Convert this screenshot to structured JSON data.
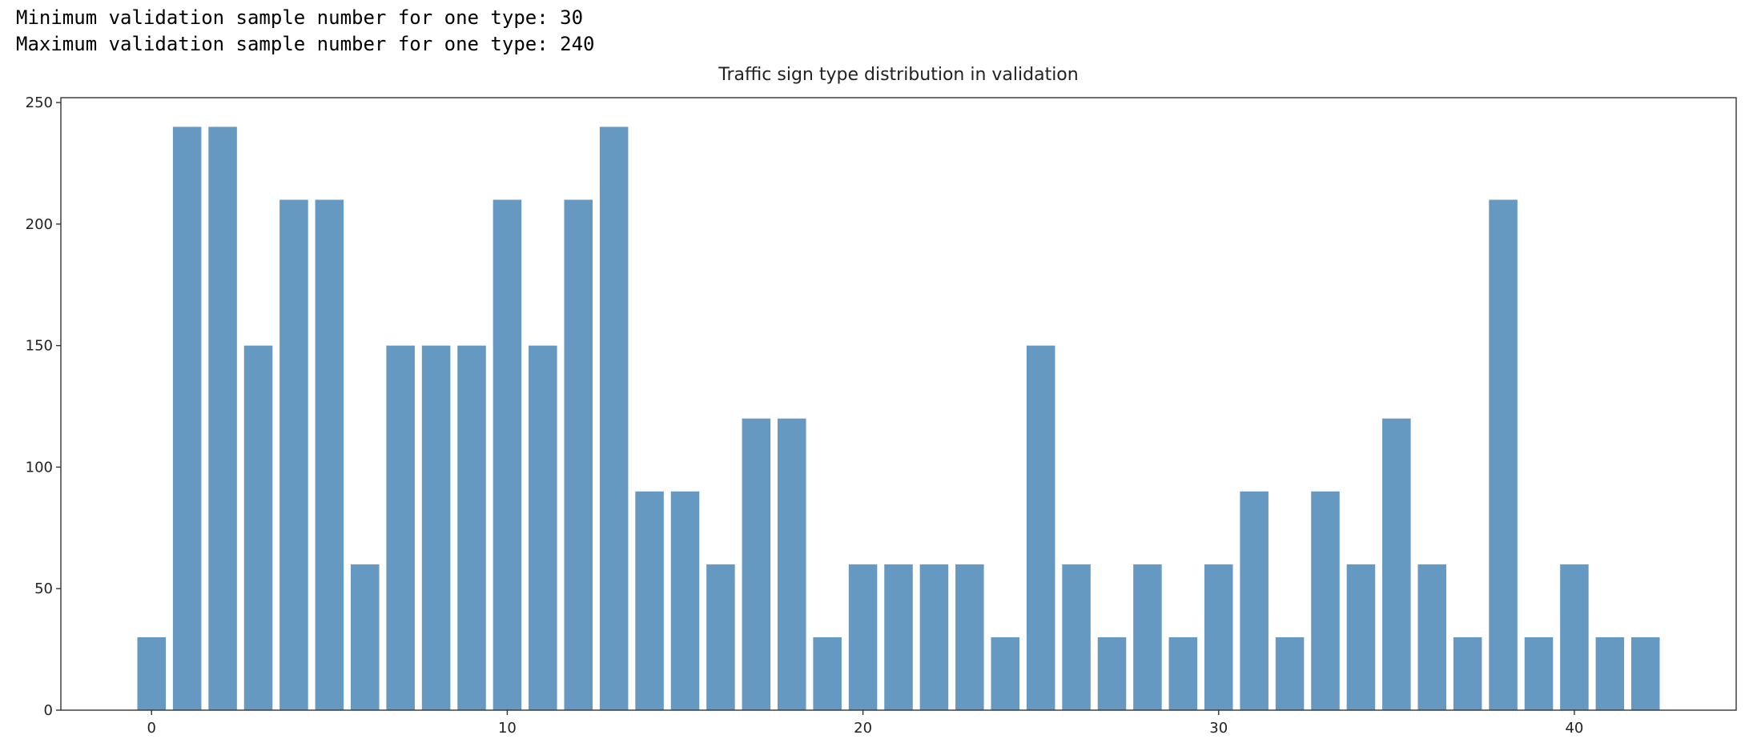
{
  "output": [
    "Minimum validation sample number for one type: 30",
    "Maximum validation sample number for one type: 240"
  ],
  "chart_data": {
    "type": "bar",
    "title": "Traffic sign type distribution in validation",
    "color": "#6699c2",
    "x": [
      0,
      1,
      2,
      3,
      4,
      5,
      6,
      7,
      8,
      9,
      10,
      11,
      12,
      13,
      14,
      15,
      16,
      17,
      18,
      19,
      20,
      21,
      22,
      23,
      24,
      25,
      26,
      27,
      28,
      29,
      30,
      31,
      32,
      33,
      34,
      35,
      36,
      37,
      38,
      39,
      40,
      41,
      42
    ],
    "values": [
      30,
      240,
      240,
      150,
      210,
      210,
      60,
      150,
      150,
      150,
      210,
      150,
      210,
      240,
      90,
      90,
      60,
      120,
      120,
      30,
      60,
      60,
      60,
      60,
      30,
      150,
      60,
      30,
      60,
      30,
      60,
      90,
      30,
      90,
      60,
      120,
      60,
      30,
      210,
      30,
      60,
      30,
      30
    ],
    "xlim": [
      -2.55,
      44.55
    ],
    "xticks": [
      0,
      10,
      20,
      30,
      40
    ],
    "ylim": [
      0,
      252
    ],
    "yticks": [
      0,
      50,
      100,
      150,
      200,
      250
    ]
  }
}
